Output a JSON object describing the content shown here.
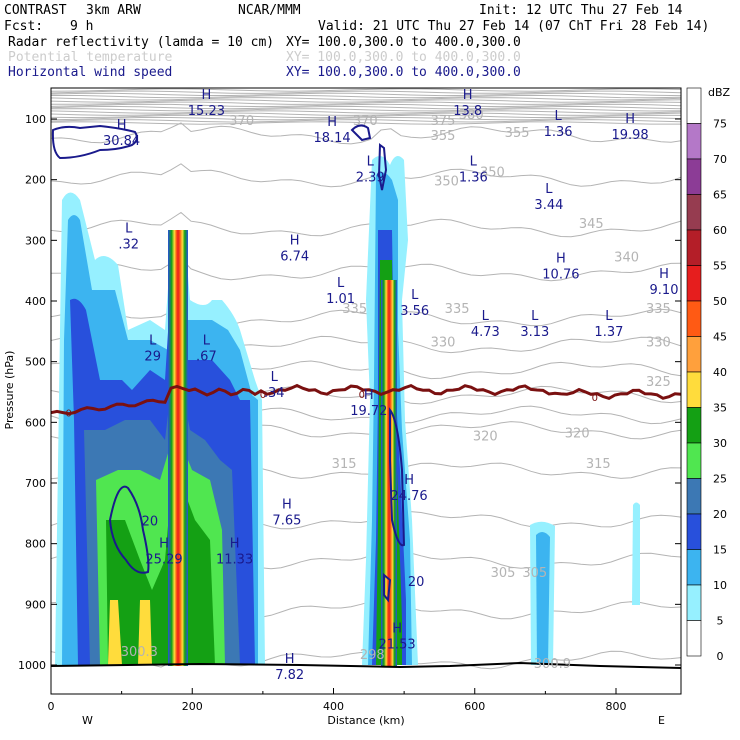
{
  "header": {
    "experiment": "CONTRAST",
    "model": "3km ARW",
    "org": "NCAR/MMM",
    "init": "Init: 12 UTC Thu 27 Feb 14",
    "fcst_label": "Fcst:",
    "fcst_value": "9 h",
    "valid": "Valid: 21 UTC Thu 27 Feb 14 (07 ChT Fri 28 Feb 14)",
    "field1": "Radar reflectivity (lamda = 10 cm)",
    "field1_xy": "XY= 100.0,300.0 to 400.0,300.0",
    "field2": "Potential temperature",
    "field2_xy": "XY= 100.0,300.0 to 400.0,300.0",
    "field3": "Horizontal wind speed",
    "field3_xy": "XY= 100.0,300.0 to 400.0,300.0"
  },
  "colors": {
    "field1": "#000000",
    "field2": "#cccccc",
    "field3": "#1a1a8c",
    "theta": "#b4b4b4",
    "wind": "#1a1a8c",
    "freezing": "#7a1010"
  },
  "chart_data": {
    "type": "cross-section",
    "xlabel": "Distance (km)",
    "ylabel": "Pressure (hPa)",
    "xlim": [
      0,
      900
    ],
    "ylim": [
      1050,
      50
    ],
    "x_ticks": [
      "0",
      "200",
      "400",
      "600",
      "800"
    ],
    "y_ticks": [
      "100",
      "200",
      "300",
      "400",
      "500",
      "600",
      "700",
      "800",
      "900",
      "1000"
    ],
    "x_end_labels": {
      "left": "W",
      "right": "E"
    },
    "colorbar": {
      "unit": "dBZ",
      "levels": [
        "75",
        "70",
        "65",
        "60",
        "55",
        "50",
        "45",
        "40",
        "35",
        "30",
        "25",
        "20",
        "15",
        "10",
        "5",
        "0"
      ],
      "colors": [
        "#ffffff",
        "#b478c8",
        "#8c3c96",
        "#963c50",
        "#b41e28",
        "#e61e1e",
        "#ff5a14",
        "#ffa03c",
        "#ffdc3c",
        "#14a014",
        "#50e650",
        "#3c78b4",
        "#2850dc",
        "#3cb4f0",
        "#96f0ff",
        "#ffffff"
      ]
    },
    "theta_labels": [
      {
        "text": "370",
        "x": 270,
        "p": 110
      },
      {
        "text": "370",
        "x": 445,
        "p": 110
      },
      {
        "text": "375",
        "x": 555,
        "p": 110
      },
      {
        "text": "380",
        "x": 595,
        "p": 100
      },
      {
        "text": "355",
        "x": 660,
        "p": 130
      },
      {
        "text": "355",
        "x": 555,
        "p": 135
      },
      {
        "text": "350",
        "x": 625,
        "p": 195
      },
      {
        "text": "350",
        "x": 560,
        "p": 210
      },
      {
        "text": "345",
        "x": 765,
        "p": 280
      },
      {
        "text": "340",
        "x": 815,
        "p": 335
      },
      {
        "text": "335",
        "x": 430,
        "p": 420
      },
      {
        "text": "335",
        "x": 575,
        "p": 420
      },
      {
        "text": "335",
        "x": 860,
        "p": 420
      },
      {
        "text": "330",
        "x": 555,
        "p": 475
      },
      {
        "text": "330",
        "x": 860,
        "p": 475
      },
      {
        "text": "325",
        "x": 860,
        "p": 540
      },
      {
        "text": "320",
        "x": 615,
        "p": 630
      },
      {
        "text": "320",
        "x": 745,
        "p": 625
      },
      {
        "text": "315",
        "x": 415,
        "p": 675
      },
      {
        "text": "315",
        "x": 775,
        "p": 675
      },
      {
        "text": "305",
        "x": 640,
        "p": 855
      },
      {
        "text": "305",
        "x": 685,
        "p": 855
      },
      {
        "text": "300.3",
        "x": 125,
        "p": 985
      },
      {
        "text": "300.9",
        "x": 710,
        "p": 1005
      },
      {
        "text": "298",
        "x": 455,
        "p": 990
      }
    ],
    "wind_extrema": [
      {
        "type": "H",
        "value": "15.23",
        "x": 220,
        "p": 70
      },
      {
        "type": "H",
        "value": "13.8",
        "x": 590,
        "p": 70
      },
      {
        "type": "L",
        "value": "1.36",
        "x": 718,
        "p": 105
      },
      {
        "type": "H",
        "value": "19.98",
        "x": 820,
        "p": 110
      },
      {
        "type": "H",
        "value": "30.84",
        "x": 100,
        "p": 120
      },
      {
        "type": "H",
        "value": "18.14",
        "x": 398,
        "p": 115
      },
      {
        "type": "L",
        "value": "2.39",
        "x": 452,
        "p": 180
      },
      {
        "type": "L",
        "value": "1.36",
        "x": 598,
        "p": 180
      },
      {
        "type": "L",
        "value": "3.44",
        "x": 705,
        "p": 225
      },
      {
        "type": "L",
        "value": ".32",
        "x": 110,
        "p": 290
      },
      {
        "type": "H",
        "value": "6.74",
        "x": 345,
        "p": 310
      },
      {
        "type": "H",
        "value": "10.76",
        "x": 722,
        "p": 340
      },
      {
        "type": "H",
        "value": "9.10",
        "x": 868,
        "p": 365
      },
      {
        "type": "L",
        "value": "1.01",
        "x": 410,
        "p": 380
      },
      {
        "type": "L",
        "value": "3.56",
        "x": 515,
        "p": 400
      },
      {
        "type": "L",
        "value": "4.73",
        "x": 615,
        "p": 435
      },
      {
        "type": "L",
        "value": "3.13",
        "x": 685,
        "p": 435
      },
      {
        "type": "L",
        "value": "1.37",
        "x": 790,
        "p": 435
      },
      {
        "type": "L",
        "value": "29",
        "x": 144,
        "p": 475
      },
      {
        "type": "L",
        "value": ".67",
        "x": 220,
        "p": 475
      },
      {
        "type": "L",
        "value": ".34",
        "x": 316,
        "p": 535
      },
      {
        "type": "H",
        "value": "19.72",
        "x": 450,
        "p": 565
      },
      {
        "type": "H",
        "value": "24.76",
        "x": 507,
        "p": 705
      },
      {
        "type": "H",
        "value": "7.65",
        "x": 334,
        "p": 745
      },
      {
        "type": "H",
        "value": "25.29",
        "x": 160,
        "p": 810
      },
      {
        "type": "H",
        "value": "11.33",
        "x": 260,
        "p": 810
      },
      {
        "type": "H",
        "value": "21.53",
        "x": 490,
        "p": 950
      },
      {
        "type": "H",
        "value": "7.82",
        "x": 338,
        "p": 1000
      }
    ],
    "wind_contour_labels": [
      {
        "text": "20",
        "x": 140,
        "p": 770
      },
      {
        "text": "20",
        "x": 517,
        "p": 870
      }
    ],
    "freezing_labels": [
      {
        "text": "0",
        "x": 25,
        "p": 590
      },
      {
        "text": "0",
        "x": 300,
        "p": 560
      },
      {
        "text": "0",
        "x": 440,
        "p": 560
      },
      {
        "text": "0",
        "x": 770,
        "p": 565
      }
    ]
  }
}
